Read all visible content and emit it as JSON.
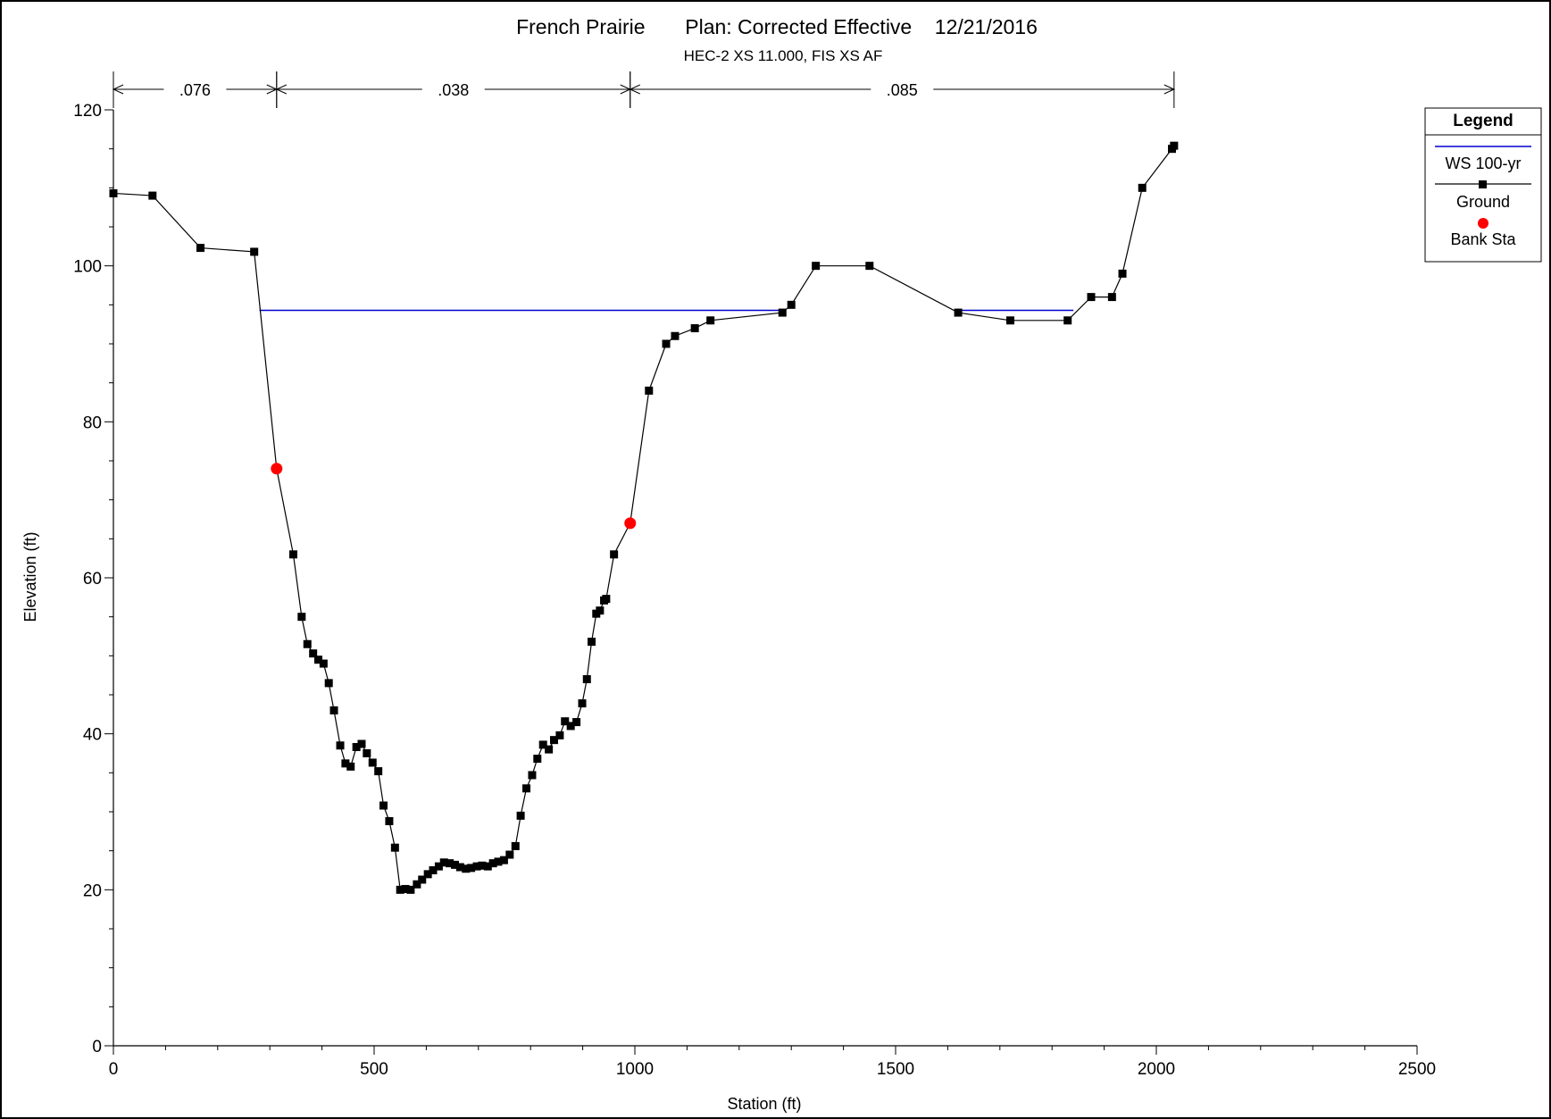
{
  "chart_data": {
    "type": "line",
    "title": "French Prairie       Plan: Corrected Effective    12/21/2016",
    "subtitle": "HEC-2 XS 11.000, FIS XS AF",
    "xlabel": "Station (ft)",
    "ylabel": "Elevation (ft)",
    "xlim": [
      0,
      2500
    ],
    "ylim": [
      0,
      120
    ],
    "x_ticks": [
      0,
      500,
      1000,
      1500,
      2000,
      2500
    ],
    "y_ticks": [
      0,
      20,
      40,
      60,
      80,
      100,
      120
    ],
    "manning_n": [
      {
        "from": 0,
        "to": 313,
        "label": ".076"
      },
      {
        "from": 313,
        "to": 991,
        "label": ".038"
      },
      {
        "from": 991,
        "to": 2034,
        "label": ".085"
      }
    ],
    "legend": {
      "title": "Legend",
      "position": "top-right",
      "entries": [
        {
          "label": "WS 100-yr",
          "color": "#0000cc"
        },
        {
          "label": "Ground",
          "color": "#000000"
        },
        {
          "label": "Bank Sta",
          "color": "#ff0000"
        }
      ]
    },
    "series": [
      {
        "name": "WS 100-yr",
        "color": "#0000cc",
        "segments": [
          [
            [
              280,
              94.3
            ],
            [
              1283,
              94.3
            ]
          ],
          [
            [
              1620,
              94.3
            ],
            [
              1841,
              94.3
            ]
          ]
        ]
      },
      {
        "name": "Ground",
        "color": "#000000",
        "marker": "square",
        "points": [
          [
            0,
            109.3
          ],
          [
            75,
            109.0
          ],
          [
            167,
            102.3
          ],
          [
            270,
            101.8
          ],
          [
            313,
            74.0
          ],
          [
            345,
            63.0
          ],
          [
            361,
            55.0
          ],
          [
            372,
            51.5
          ],
          [
            383,
            50.3
          ],
          [
            393,
            49.5
          ],
          [
            403,
            49.0
          ],
          [
            413,
            46.5
          ],
          [
            423,
            43.0
          ],
          [
            435,
            38.5
          ],
          [
            445,
            36.2
          ],
          [
            455,
            35.8
          ],
          [
            466,
            38.3
          ],
          [
            476,
            38.7
          ],
          [
            486,
            37.5
          ],
          [
            497,
            36.3
          ],
          [
            508,
            35.2
          ],
          [
            518,
            30.8
          ],
          [
            529,
            28.8
          ],
          [
            540,
            25.4
          ],
          [
            550,
            20.0
          ],
          [
            560,
            20.1
          ],
          [
            570,
            20.0
          ],
          [
            582,
            20.7
          ],
          [
            592,
            21.3
          ],
          [
            603,
            22.0
          ],
          [
            613,
            22.5
          ],
          [
            624,
            23.0
          ],
          [
            634,
            23.5
          ],
          [
            645,
            23.4
          ],
          [
            655,
            23.2
          ],
          [
            665,
            22.9
          ],
          [
            676,
            22.7
          ],
          [
            686,
            22.8
          ],
          [
            697,
            23.0
          ],
          [
            707,
            23.1
          ],
          [
            718,
            23.0
          ],
          [
            728,
            23.4
          ],
          [
            738,
            23.6
          ],
          [
            749,
            23.8
          ],
          [
            760,
            24.5
          ],
          [
            771,
            25.6
          ],
          [
            781,
            29.5
          ],
          [
            792,
            33.0
          ],
          [
            803,
            34.7
          ],
          [
            813,
            36.8
          ],
          [
            824,
            38.6
          ],
          [
            835,
            38.0
          ],
          [
            845,
            39.2
          ],
          [
            856,
            39.8
          ],
          [
            866,
            41.6
          ],
          [
            877,
            41.0
          ],
          [
            888,
            41.5
          ],
          [
            899,
            43.9
          ],
          [
            908,
            47.0
          ],
          [
            917,
            51.8
          ],
          [
            926,
            55.4
          ],
          [
            933,
            55.8
          ],
          [
            941,
            57.1
          ],
          [
            945,
            57.3
          ],
          [
            960,
            63.0
          ],
          [
            991,
            67.0
          ],
          [
            1027,
            84.0
          ],
          [
            1060,
            90.0
          ],
          [
            1077,
            91.0
          ],
          [
            1115,
            92.0
          ],
          [
            1145,
            93.0
          ],
          [
            1283,
            94.0
          ],
          [
            1300,
            95.0
          ],
          [
            1347,
            100.0
          ],
          [
            1450,
            100.0
          ],
          [
            1620,
            94.0
          ],
          [
            1720,
            93.0
          ],
          [
            1830,
            93.0
          ],
          [
            1875,
            96.0
          ],
          [
            1915,
            96.0
          ],
          [
            1935,
            99.0
          ],
          [
            1973,
            110.0
          ],
          [
            2030,
            115.0
          ],
          [
            2034,
            115.4
          ]
        ]
      },
      {
        "name": "Bank Sta",
        "color": "#ff0000",
        "marker": "circle",
        "points": [
          [
            313,
            74.0
          ],
          [
            991,
            67.0
          ]
        ]
      }
    ]
  }
}
